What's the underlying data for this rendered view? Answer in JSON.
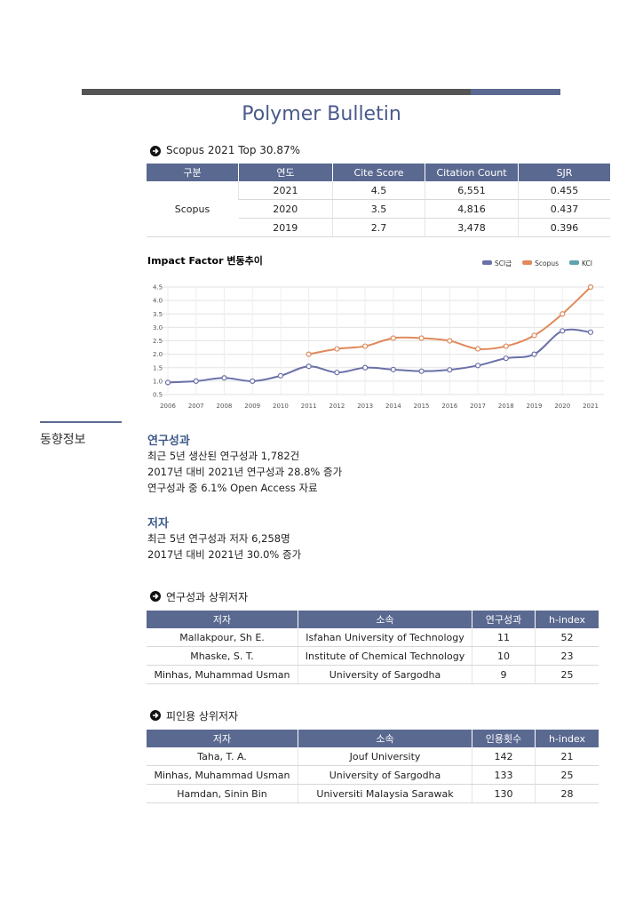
{
  "title": "Polymer Bulletin",
  "scopus_heading": "Scopus 2021 Top 30.87%",
  "scopus_table": {
    "header": [
      "구분",
      "연도",
      "Cite Score",
      "Citation Count",
      "SJR"
    ],
    "group": "Scopus",
    "rows": [
      [
        "2021",
        "4.5",
        "6,551",
        "0.455"
      ],
      [
        "2020",
        "3.5",
        "4,816",
        "0.437"
      ],
      [
        "2019",
        "2.7",
        "3,478",
        "0.396"
      ]
    ]
  },
  "chart_data": {
    "type": "line",
    "title": "Impact Factor 변동추이",
    "categories": [
      "2006",
      "2007",
      "2008",
      "2009",
      "2010",
      "2011",
      "2012",
      "2013",
      "2014",
      "2015",
      "2016",
      "2017",
      "2018",
      "2019",
      "2020",
      "2021"
    ],
    "series": [
      {
        "name": "SCI급",
        "color": "#6b70a8",
        "values": [
          0.95,
          1.0,
          1.12,
          1.0,
          1.2,
          1.55,
          1.32,
          1.5,
          1.43,
          1.37,
          1.42,
          1.58,
          1.85,
          2.0,
          2.87,
          2.82
        ]
      },
      {
        "name": "Scopus",
        "color": "#e0895a",
        "values": [
          null,
          null,
          null,
          null,
          null,
          2.0,
          2.2,
          2.3,
          2.6,
          2.6,
          2.5,
          2.2,
          2.3,
          2.7,
          3.5,
          4.5
        ]
      },
      {
        "name": "KCI",
        "color": "#5fa3b0",
        "values": [
          null,
          null,
          null,
          null,
          null,
          null,
          null,
          null,
          null,
          null,
          null,
          null,
          null,
          null,
          null,
          null
        ]
      }
    ],
    "ylim": [
      0.5,
      4.5
    ],
    "yticks": [
      0.5,
      {
        "value": 1,
        "label": "1.0"
      },
      1.5,
      {
        "value": 2,
        "label": "2.0"
      },
      2.5,
      {
        "value": 3,
        "label": "3.0"
      },
      3.5,
      {
        "value": 4,
        "label": "4.0"
      },
      4.5
    ],
    "grid": true,
    "legend": "top-right"
  },
  "side_label": "동향정보",
  "output": {
    "heading": "연구성과",
    "lines": [
      "최근 5년 생산된 연구성과 1,782건",
      "2017년 대비 2021년 연구성과 28.8% 증가",
      "연구성과 중 6.1% Open Access 자료"
    ]
  },
  "authors": {
    "heading": "저자",
    "lines": [
      "최근 5년 연구성과 저자 6,258명",
      "2017년 대비 2021년 30.0% 증가"
    ]
  },
  "top_output": {
    "heading": "연구성과 상위저자",
    "header": [
      "저자",
      "소속",
      "연구성과",
      "h-index"
    ],
    "rows": [
      [
        "Mallakpour, Sh E.",
        "Isfahan University of Technology",
        "11",
        "52"
      ],
      [
        "Mhaske, S. T.",
        "Institute of Chemical Technology",
        "10",
        "23"
      ],
      [
        "Minhas, Muhammad Usman",
        "University of Sargodha",
        "9",
        "25"
      ]
    ]
  },
  "top_cited": {
    "heading": "피인용 상위저자",
    "header": [
      "저자",
      "소속",
      "인용횟수",
      "h-index"
    ],
    "rows": [
      [
        "Taha, T. A.",
        "Jouf University",
        "142",
        "21"
      ],
      [
        "Minhas, Muhammad Usman",
        "University of Sargodha",
        "133",
        "25"
      ],
      [
        "Hamdan, Sinin Bin",
        "Universiti Malaysia Sarawak",
        "130",
        "28"
      ]
    ]
  }
}
